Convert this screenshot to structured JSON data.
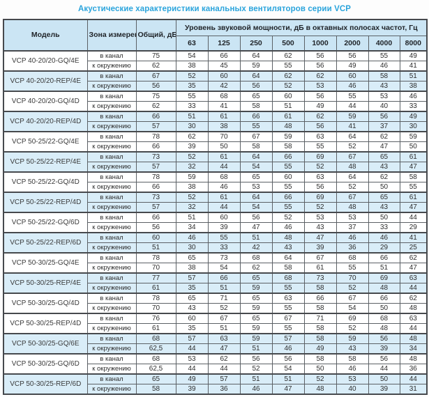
{
  "title": "Акустические характеристики канальных вентиляторов  серии VCP",
  "colors": {
    "title_text": "#2aa4dc",
    "header_bg": "#cbe5f4",
    "band_row_bg": "#d9edf8",
    "plain_row_bg": "#ffffff",
    "border": "#5b6065",
    "text": "#2e2e2e"
  },
  "table": {
    "headers": {
      "model": "Модель",
      "zone": "Зона измерения",
      "total": "Общий, дБА",
      "spl_group": "Уровень звуковой мощности, дБ в октавных полосах частот, Гц",
      "frequencies": [
        "63",
        "125",
        "250",
        "500",
        "1000",
        "2000",
        "4000",
        "8000"
      ]
    },
    "models": [
      {
        "name": "VCP 40-20/20-GQ/4E",
        "shaded": false,
        "rows": [
          {
            "zone": "в канал",
            "total": "75",
            "levels": [
              54,
              66,
              64,
              62,
              56,
              56,
              55,
              49
            ]
          },
          {
            "zone": "к окружению",
            "total": "62",
            "levels": [
              38,
              45,
              59,
              55,
              56,
              49,
              46,
              41
            ]
          }
        ]
      },
      {
        "name": "VCP 40-20/20-REP/4E",
        "shaded": true,
        "rows": [
          {
            "zone": "в канал",
            "total": "67",
            "levels": [
              52,
              60,
              64,
              62,
              62,
              60,
              58,
              51
            ]
          },
          {
            "zone": "к окружению",
            "total": "56",
            "levels": [
              35,
              42,
              56,
              52,
              53,
              46,
              43,
              38
            ]
          }
        ]
      },
      {
        "name": "VCP 40-20/20-GQ/4D",
        "shaded": false,
        "rows": [
          {
            "zone": "в канал",
            "total": "75",
            "levels": [
              55,
              68,
              65,
              60,
              56,
              55,
              53,
              46
            ]
          },
          {
            "zone": "к окружению",
            "total": "62",
            "levels": [
              33,
              41,
              58,
              51,
              49,
              44,
              40,
              33
            ]
          }
        ]
      },
      {
        "name": "VCP 40-20/20-REP/4D",
        "shaded": true,
        "rows": [
          {
            "zone": "в канал",
            "total": "66",
            "levels": [
              51,
              61,
              66,
              61,
              62,
              59,
              56,
              49
            ]
          },
          {
            "zone": "к окружению",
            "total": "57",
            "levels": [
              30,
              38,
              55,
              48,
              56,
              41,
              37,
              30
            ]
          }
        ]
      },
      {
        "name": "VCP 50-25/22-GQ/4E",
        "shaded": false,
        "rows": [
          {
            "zone": "в канал",
            "total": "78",
            "levels": [
              62,
              70,
              67,
              59,
              63,
              64,
              62,
              59
            ]
          },
          {
            "zone": "к окружению",
            "total": "66",
            "levels": [
              39,
              50,
              58,
              58,
              55,
              52,
              47,
              50
            ]
          }
        ]
      },
      {
        "name": "VCP 50-25/22-REP/4E",
        "shaded": true,
        "rows": [
          {
            "zone": "в канал",
            "total": "73",
            "levels": [
              52,
              61,
              64,
              66,
              69,
              67,
              65,
              61
            ]
          },
          {
            "zone": "к окружению",
            "total": "57",
            "levels": [
              32,
              44,
              54,
              55,
              52,
              48,
              43,
              47
            ]
          }
        ]
      },
      {
        "name": "VCP 50-25/22-GQ/4D",
        "shaded": false,
        "rows": [
          {
            "zone": "в канал",
            "total": "78",
            "levels": [
              59,
              68,
              65,
              60,
              63,
              64,
              62,
              58
            ]
          },
          {
            "zone": "к окружению",
            "total": "66",
            "levels": [
              38,
              46,
              53,
              55,
              56,
              52,
              50,
              55
            ]
          }
        ]
      },
      {
        "name": "VCP 50-25/22-REP/4D",
        "shaded": true,
        "rows": [
          {
            "zone": "в канал",
            "total": "73",
            "levels": [
              52,
              61,
              64,
              66,
              69,
              67,
              65,
              61
            ]
          },
          {
            "zone": "к окружению",
            "total": "57",
            "levels": [
              32,
              44,
              54,
              55,
              52,
              48,
              43,
              47
            ]
          }
        ]
      },
      {
        "name": "VCP 50-25/22-GQ/6D",
        "shaded": false,
        "rows": [
          {
            "zone": "в канал",
            "total": "66",
            "levels": [
              51,
              60,
              56,
              52,
              53,
              53,
              50,
              44
            ]
          },
          {
            "zone": "к окружению",
            "total": "56",
            "levels": [
              34,
              39,
              47,
              46,
              43,
              37,
              33,
              29
            ]
          }
        ]
      },
      {
        "name": "VCP 50-25/22-REP/6D",
        "shaded": true,
        "rows": [
          {
            "zone": "в канал",
            "total": "60",
            "levels": [
              46,
              55,
              51,
              48,
              47,
              46,
              46,
              41
            ]
          },
          {
            "zone": "к окружению",
            "total": "51",
            "levels": [
              30,
              33,
              42,
              43,
              39,
              36,
              29,
              25
            ]
          }
        ]
      },
      {
        "name": "VCP 50-30/25-GQ/4E",
        "shaded": false,
        "rows": [
          {
            "zone": "в канал",
            "total": "78",
            "levels": [
              65,
              73,
              68,
              64,
              67,
              68,
              66,
              62
            ]
          },
          {
            "zone": "к окружению",
            "total": "70",
            "levels": [
              38,
              54,
              62,
              58,
              61,
              55,
              51,
              47
            ]
          }
        ]
      },
      {
        "name": "VCP 50-30/25-REP/4E",
        "shaded": true,
        "rows": [
          {
            "zone": "в канал",
            "total": "77",
            "levels": [
              57,
              66,
              65,
              68,
              73,
              70,
              69,
              63
            ]
          },
          {
            "zone": "к окружению",
            "total": "61",
            "levels": [
              35,
              51,
              59,
              55,
              58,
              52,
              48,
              44
            ]
          }
        ]
      },
      {
        "name": "VCP 50-30/25-GQ/4D",
        "shaded": false,
        "rows": [
          {
            "zone": "в канал",
            "total": "78",
            "levels": [
              65,
              71,
              65,
              63,
              66,
              67,
              66,
              62
            ]
          },
          {
            "zone": "к окружению",
            "total": "70",
            "levels": [
              43,
              52,
              59,
              55,
              58,
              54,
              50,
              48
            ]
          }
        ]
      },
      {
        "name": "VCP 50-30/25-REP/4D",
        "shaded": false,
        "rows": [
          {
            "zone": "в канал",
            "total": "76",
            "levels": [
              60,
              67,
              65,
              67,
              71,
              69,
              68,
              63
            ]
          },
          {
            "zone": "к окружению",
            "total": "61",
            "levels": [
              35,
              51,
              59,
              55,
              58,
              52,
              48,
              44
            ]
          }
        ]
      },
      {
        "name": "VCP 50-30/25-GQ/6E",
        "shaded": true,
        "rows": [
          {
            "zone": "в канал",
            "total": "68",
            "levels": [
              57,
              63,
              59,
              57,
              58,
              59,
              56,
              48
            ]
          },
          {
            "zone": "к окружению",
            "total": "62,5",
            "levels": [
              44,
              47,
              51,
              46,
              49,
              43,
              39,
              34
            ]
          }
        ]
      },
      {
        "name": "VCP 50-30/25-GQ/6D",
        "shaded": false,
        "rows": [
          {
            "zone": "в канал",
            "total": "68",
            "levels": [
              53,
              62,
              56,
              56,
              58,
              58,
              56,
              48
            ]
          },
          {
            "zone": "к окружению",
            "total": "62,5",
            "levels": [
              44,
              44,
              52,
              54,
              50,
              46,
              44,
              36
            ]
          }
        ]
      },
      {
        "name": "VCP 50-30/25-REP/6D",
        "shaded": true,
        "rows": [
          {
            "zone": "в канал",
            "total": "65",
            "levels": [
              49,
              57,
              51,
              51,
              52,
              53,
              50,
              44
            ]
          },
          {
            "zone": "к окружению",
            "total": "58",
            "levels": [
              39,
              36,
              46,
              47,
              48,
              40,
              39,
              31
            ]
          }
        ]
      }
    ]
  }
}
